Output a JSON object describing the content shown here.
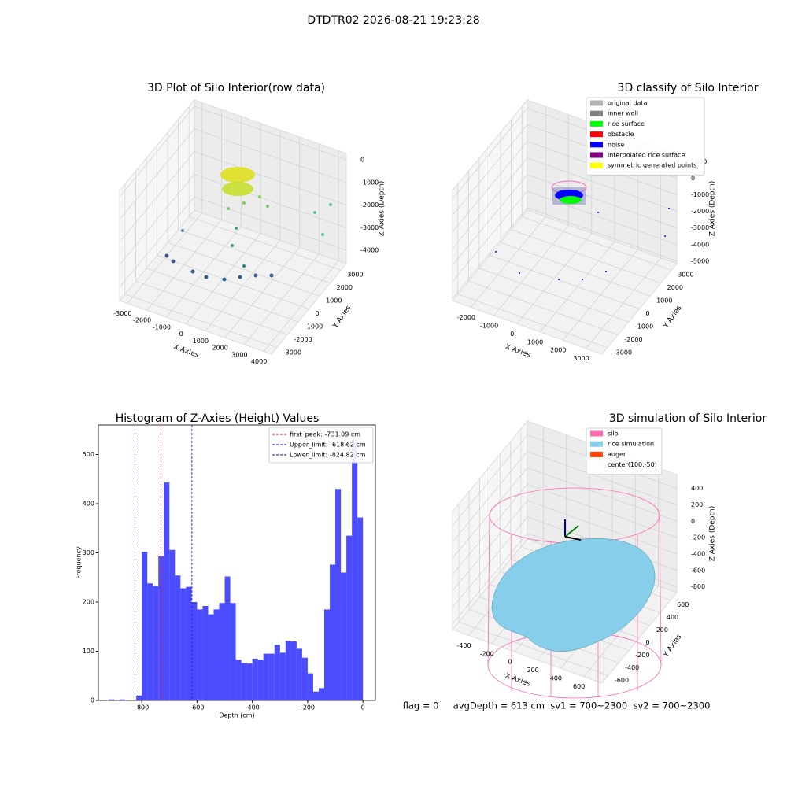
{
  "title": "DTDTR02 2026-08-21 19:23:28",
  "footer": "flag = 0     avgDepth = 613 cm  sv1 = 700~2300  sv2 = 700~2300",
  "chart_data": [
    {
      "type": "scatter3d",
      "title": "3D Plot of Silo Interior(row data)",
      "xlabel": "X Axies",
      "ylabel": "Y Axies",
      "zlabel": "Z Axies (Depth)",
      "xlim": [
        -3400,
        4400
      ],
      "ylim": [
        -3500,
        3500
      ],
      "zlim": [
        -4590,
        280
      ],
      "xticks": [
        -3000,
        -2000,
        -1000,
        0,
        1000,
        2000,
        3000,
        4000
      ],
      "yticks": [
        -3000,
        -2000,
        -1000,
        0,
        1000,
        2000,
        3000
      ],
      "zticks": [
        -4000,
        -3000,
        -2000,
        -1000,
        0
      ],
      "grid": true
    },
    {
      "type": "scatter3d",
      "title": "3D classify of Silo Interior",
      "xlabel": "X Axies",
      "ylabel": "Y Axies",
      "zlabel": "Z Axies (Depth)",
      "xlim": [
        -2800,
        3700
      ],
      "ylim": [
        -3500,
        3500
      ],
      "zlim": [
        -5150,
        1500
      ],
      "xticks": [
        -2000,
        -1000,
        0,
        1000,
        2000,
        3000
      ],
      "yticks": [
        -3000,
        -2000,
        -1000,
        0,
        1000,
        2000,
        3000
      ],
      "zticks": [
        -5000,
        -4000,
        -3000,
        -2000,
        -1000,
        0,
        1000
      ],
      "grid": true,
      "legend": "upper right",
      "legend_entries": [
        {
          "name": "original data",
          "color": "#b3b3b3"
        },
        {
          "name": "inner wall",
          "color": "#808080"
        },
        {
          "name": "rice surface",
          "color": "#00ff00"
        },
        {
          "name": "obstacle",
          "color": "#ff0000"
        },
        {
          "name": "noise",
          "color": "#0000ff"
        },
        {
          "name": "interpolated rice surface",
          "color": "#800080"
        },
        {
          "name": "symmetric generated points",
          "color": "#ffff00"
        }
      ]
    },
    {
      "type": "histogram",
      "title": "Histogram of Z-Axies (Height) Values",
      "xlabel": "Depth (cm)",
      "ylabel": "Frequency",
      "color": "#0000ff",
      "bins": [
        -940,
        -920,
        -900,
        -880,
        -860,
        -840,
        -820,
        -800,
        -780,
        -760,
        -740,
        -720,
        -700,
        -680,
        -660,
        -640,
        -620,
        -600,
        -580,
        -560,
        -540,
        -520,
        -500,
        -480,
        -460,
        -440,
        -420,
        -400,
        -380,
        -360,
        -340,
        -320,
        -300,
        -280,
        -260,
        -240,
        -220,
        -200,
        -180,
        -160,
        -140,
        -120,
        -100,
        -80,
        -60,
        -40,
        -20,
        0
      ],
      "counts": [
        0,
        2,
        0,
        2,
        0,
        0,
        10,
        302,
        238,
        233,
        293,
        443,
        306,
        254,
        228,
        231,
        200,
        185,
        192,
        175,
        185,
        198,
        252,
        198,
        83,
        76,
        75,
        85,
        83,
        95,
        95,
        113,
        97,
        121,
        120,
        105,
        87,
        55,
        18,
        25,
        185,
        276,
        430,
        260,
        335,
        530,
        372
      ],
      "xlim": [
        -957,
        45
      ],
      "ylim": [
        0,
        560
      ],
      "xticks": [
        -800,
        -600,
        -400,
        -200,
        0
      ],
      "yticks": [
        0,
        100,
        200,
        300,
        400,
        500
      ],
      "legend": "upper right",
      "lines": [
        {
          "value": -731.09,
          "label": "first_peak: -731.09 cm",
          "color": "#ff0000"
        },
        {
          "value": -618.62,
          "label": "Upper_limit: -618.62 cm",
          "color": "#0000ff"
        },
        {
          "value": -824.82,
          "label": "Lower_limit: -824.82 cm",
          "color": "#0000ff"
        }
      ]
    },
    {
      "type": "surface3d",
      "title": "3D simulation of Silo Interior",
      "xlabel": "X Axies",
      "ylabel": "Y Axies",
      "zlabel": "Z Axies (Depth)",
      "xlim": [
        -540,
        760
      ],
      "ylim": [
        -720,
        720
      ],
      "zlim": [
        -870,
        570
      ],
      "xticks": [
        -400,
        -200,
        0,
        200,
        400,
        600
      ],
      "yticks": [
        -600,
        -400,
        -200,
        0,
        200,
        400,
        600
      ],
      "zticks": [
        -800,
        -600,
        -400,
        -200,
        0,
        200,
        400
      ],
      "grid": true,
      "legend": "upper right",
      "legend_entries": [
        {
          "name": "silo",
          "color": "#ff69b4"
        },
        {
          "name": "rice simulation",
          "color": "#87ceeb"
        },
        {
          "name": "auger",
          "color": "#ff4500"
        },
        {
          "name": "center(100,-50)",
          "color": null
        }
      ]
    }
  ]
}
